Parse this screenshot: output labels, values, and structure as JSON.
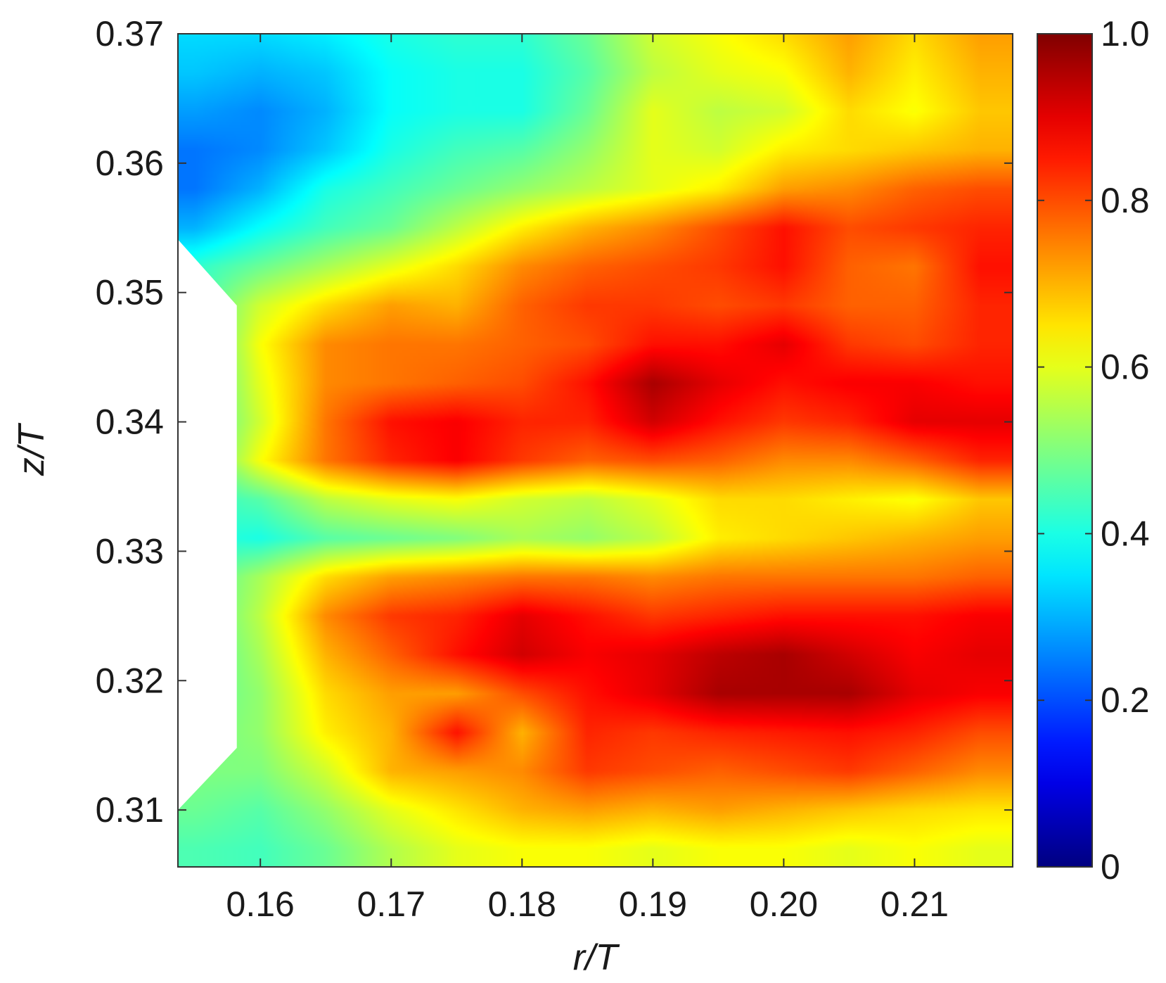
{
  "chart_data": {
    "type": "heatmap",
    "title": "",
    "xlabel": "r/T",
    "ylabel": "z/T",
    "xlim": [
      0.1537,
      0.2175
    ],
    "ylim": [
      0.3056,
      0.37
    ],
    "x_ticks": [
      "0.16",
      "0.17",
      "0.18",
      "0.19",
      "0.20",
      "0.21"
    ],
    "y_ticks": [
      "0.31",
      "0.32",
      "0.33",
      "0.34",
      "0.35",
      "0.36",
      "0.37"
    ],
    "colorbar": {
      "colormap": "jet",
      "range": [
        0,
        1.0
      ],
      "ticks": [
        "0",
        "0.2",
        "0.4",
        "0.6",
        "0.8",
        "1.0"
      ],
      "position": "right"
    },
    "grid": false,
    "masked_region": {
      "description_points_r_z": [
        [
          0.1537,
          0.3541
        ],
        [
          0.1582,
          0.349
        ],
        [
          0.1582,
          0.3148
        ],
        [
          0.1537,
          0.31
        ]
      ]
    },
    "x": [
      0.155,
      0.16,
      0.165,
      0.17,
      0.175,
      0.18,
      0.185,
      0.19,
      0.195,
      0.2,
      0.205,
      0.21,
      0.215
    ],
    "y": [
      0.307,
      0.31,
      0.313,
      0.316,
      0.319,
      0.322,
      0.325,
      0.328,
      0.331,
      0.334,
      0.337,
      0.34,
      0.343,
      0.346,
      0.349,
      0.352,
      0.355,
      0.358,
      0.361,
      0.364,
      0.367,
      0.37
    ],
    "z": [
      [
        0.45,
        0.44,
        0.48,
        0.55,
        0.6,
        0.62,
        0.62,
        0.6,
        0.62,
        0.62,
        0.6,
        0.62,
        0.6
      ],
      [
        0.48,
        0.46,
        0.52,
        0.6,
        0.65,
        0.7,
        0.72,
        0.7,
        0.72,
        0.7,
        0.68,
        0.66,
        0.65
      ],
      [
        0.5,
        0.5,
        0.58,
        0.7,
        0.72,
        0.74,
        0.82,
        0.8,
        0.78,
        0.8,
        0.82,
        0.78,
        0.74
      ],
      [
        0.48,
        0.52,
        0.64,
        0.7,
        0.86,
        0.7,
        0.84,
        0.82,
        0.84,
        0.85,
        0.86,
        0.84,
        0.8
      ],
      [
        0.46,
        0.52,
        0.66,
        0.72,
        0.72,
        0.8,
        0.86,
        0.9,
        0.96,
        0.96,
        0.96,
        0.9,
        0.88
      ],
      [
        0.44,
        0.54,
        0.7,
        0.78,
        0.86,
        0.92,
        0.88,
        0.9,
        0.94,
        0.96,
        0.92,
        0.88,
        0.9
      ],
      [
        0.44,
        0.56,
        0.74,
        0.82,
        0.84,
        0.9,
        0.86,
        0.82,
        0.84,
        0.86,
        0.86,
        0.86,
        0.88
      ],
      [
        0.44,
        0.54,
        0.66,
        0.72,
        0.74,
        0.76,
        0.76,
        0.74,
        0.76,
        0.76,
        0.76,
        0.76,
        0.78
      ],
      [
        0.42,
        0.4,
        0.46,
        0.48,
        0.5,
        0.54,
        0.52,
        0.56,
        0.64,
        0.66,
        0.68,
        0.7,
        0.72
      ],
      [
        0.42,
        0.46,
        0.56,
        0.6,
        0.62,
        0.58,
        0.56,
        0.6,
        0.66,
        0.66,
        0.64,
        0.62,
        0.68
      ],
      [
        0.42,
        0.62,
        0.76,
        0.84,
        0.88,
        0.82,
        0.78,
        0.8,
        0.78,
        0.74,
        0.74,
        0.78,
        0.84
      ],
      [
        0.42,
        0.58,
        0.76,
        0.86,
        0.88,
        0.84,
        0.84,
        0.92,
        0.86,
        0.82,
        0.84,
        0.9,
        0.9
      ],
      [
        0.42,
        0.6,
        0.74,
        0.76,
        0.78,
        0.8,
        0.86,
        0.96,
        0.9,
        0.86,
        0.88,
        0.88,
        0.86
      ],
      [
        0.42,
        0.62,
        0.74,
        0.76,
        0.76,
        0.78,
        0.8,
        0.86,
        0.86,
        0.9,
        0.82,
        0.8,
        0.84
      ],
      [
        0.44,
        0.58,
        0.66,
        0.72,
        0.7,
        0.78,
        0.82,
        0.82,
        0.8,
        0.82,
        0.78,
        0.78,
        0.84
      ],
      [
        0.42,
        0.48,
        0.54,
        0.6,
        0.66,
        0.74,
        0.78,
        0.8,
        0.82,
        0.86,
        0.78,
        0.76,
        0.86
      ],
      [
        0.3,
        0.38,
        0.44,
        0.48,
        0.56,
        0.64,
        0.7,
        0.74,
        0.8,
        0.86,
        0.8,
        0.82,
        0.84
      ],
      [
        0.24,
        0.3,
        0.4,
        0.44,
        0.48,
        0.52,
        0.56,
        0.6,
        0.64,
        0.72,
        0.74,
        0.78,
        0.8
      ],
      [
        0.24,
        0.26,
        0.32,
        0.4,
        0.44,
        0.46,
        0.52,
        0.6,
        0.58,
        0.64,
        0.66,
        0.68,
        0.7
      ],
      [
        0.28,
        0.26,
        0.3,
        0.38,
        0.4,
        0.4,
        0.48,
        0.6,
        0.56,
        0.58,
        0.66,
        0.62,
        0.68
      ],
      [
        0.32,
        0.3,
        0.32,
        0.38,
        0.4,
        0.4,
        0.46,
        0.56,
        0.6,
        0.62,
        0.7,
        0.64,
        0.7
      ],
      [
        0.34,
        0.34,
        0.36,
        0.4,
        0.42,
        0.42,
        0.48,
        0.58,
        0.62,
        0.66,
        0.72,
        0.66,
        0.72
      ]
    ]
  }
}
